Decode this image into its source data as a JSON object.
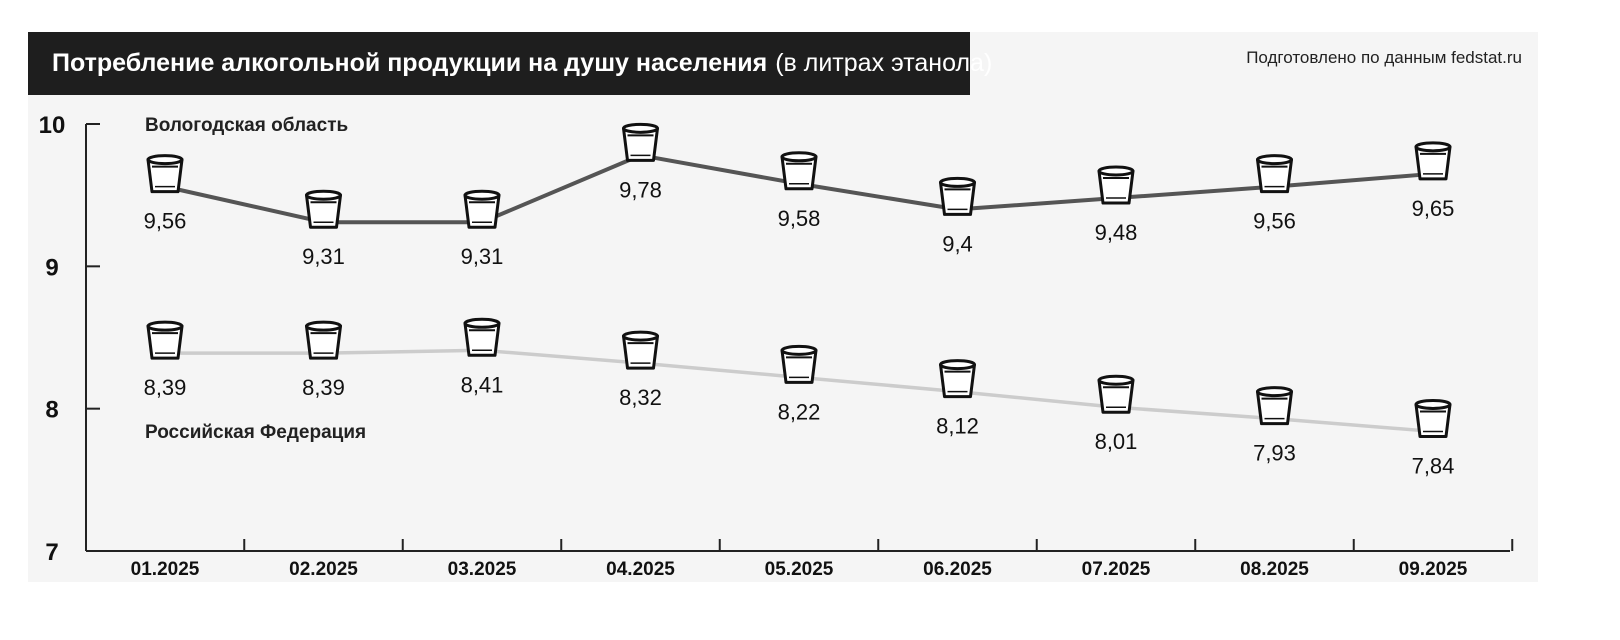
{
  "title": {
    "bold": "Потребление алкогольной продукции на душу населения",
    "normal": "(в литрах этанола)"
  },
  "source_note": "Подготовлено по данным fedstat.ru",
  "chart_data": {
    "type": "line",
    "categories": [
      "01.2025",
      "02.2025",
      "03.2025",
      "04.2025",
      "05.2025",
      "06.2025",
      "07.2025",
      "08.2025",
      "09.2025"
    ],
    "ylim": [
      7,
      10
    ],
    "yticks": [
      "10",
      "9",
      "8",
      "7"
    ],
    "series": [
      {
        "name": "Вологодская область",
        "values": [
          9.56,
          9.31,
          9.31,
          9.78,
          9.58,
          9.4,
          9.48,
          9.56,
          9.65
        ],
        "labels": [
          "9,56",
          "9,31",
          "9,31",
          "9,78",
          "9,58",
          "9,4",
          "9,48",
          "9,56",
          "9,65"
        ],
        "color": "#555555"
      },
      {
        "name": "Российская Федерация",
        "values": [
          8.39,
          8.39,
          8.41,
          8.32,
          8.22,
          8.12,
          8.01,
          7.93,
          7.84
        ],
        "labels": [
          "8,39",
          "8,39",
          "8,41",
          "8,32",
          "8,22",
          "8,12",
          "8,01",
          "7,93",
          "7,84"
        ],
        "color": "#cccccc"
      }
    ],
    "marker_icon": "glass-icon",
    "grid": false
  }
}
